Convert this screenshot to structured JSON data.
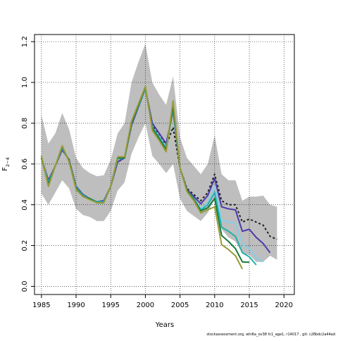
{
  "chart_data": {
    "type": "line",
    "title": "",
    "xlabel": "Years",
    "ylabel": "F",
    "ylabel_sub": "2−4",
    "xlim": [
      1984,
      2021.5
    ],
    "ylim": [
      -0.04,
      1.235
    ],
    "xticks": [
      1985,
      1990,
      1995,
      2000,
      2005,
      2010,
      2015,
      2020
    ],
    "yticks": [
      0.0,
      0.2,
      0.4,
      0.6,
      0.8,
      1.0,
      1.2
    ],
    "ytick_labels": [
      "0.0",
      "0.2",
      "0.4",
      "0.6",
      "0.8",
      "1.0",
      "1.2"
    ],
    "grid": "dotted",
    "band": {
      "color": "#bebebe",
      "x": [
        1985,
        1986,
        1987,
        1988,
        1989,
        1990,
        1991,
        1992,
        1993,
        1994,
        1995,
        1996,
        1997,
        1998,
        1999,
        2000,
        2001,
        2002,
        2003,
        2004,
        2005,
        2006,
        2007,
        2008,
        2009,
        2010,
        2011,
        2012,
        2013,
        2014,
        2015,
        2016,
        2017,
        2018,
        2019
      ],
      "upper": [
        0.84,
        0.7,
        0.75,
        0.85,
        0.77,
        0.63,
        0.58,
        0.555,
        0.54,
        0.545,
        0.62,
        0.75,
        0.8,
        1.0,
        1.1,
        1.19,
        1.0,
        0.94,
        0.89,
        1.03,
        0.73,
        0.63,
        0.59,
        0.55,
        0.6,
        0.74,
        0.55,
        0.52,
        0.52,
        0.42,
        0.44,
        0.44,
        0.445,
        0.4,
        0.39
      ],
      "lower": [
        0.455,
        0.4,
        0.46,
        0.52,
        0.48,
        0.38,
        0.35,
        0.34,
        0.32,
        0.32,
        0.37,
        0.47,
        0.51,
        0.65,
        0.73,
        0.8,
        0.64,
        0.6,
        0.555,
        0.6,
        0.43,
        0.37,
        0.345,
        0.32,
        0.36,
        0.43,
        0.28,
        0.24,
        0.22,
        0.16,
        0.155,
        0.12,
        0.12,
        0.15,
        0.13
      ]
    },
    "series": [
      {
        "color": "#222222",
        "dash": "3,3",
        "x": [
          1985,
          1986,
          1987,
          1988,
          1989,
          1990,
          1991,
          1992,
          1993,
          1994,
          1995,
          1996,
          1997,
          1998,
          1999,
          2000,
          2001,
          2002,
          2003,
          2004,
          2005,
          2006,
          2007,
          2008,
          2009,
          2010,
          2011,
          2012,
          2013,
          2014,
          2015,
          2016,
          2017,
          2018,
          2019
        ],
        "values": [
          0.63,
          0.52,
          0.59,
          0.67,
          0.62,
          0.49,
          0.45,
          0.43,
          0.415,
          0.42,
          0.49,
          0.61,
          0.63,
          0.79,
          0.88,
          0.97,
          0.79,
          0.74,
          0.69,
          0.78,
          0.58,
          0.48,
          0.45,
          0.42,
          0.46,
          0.55,
          0.42,
          0.4,
          0.4,
          0.315,
          0.33,
          0.315,
          0.3,
          0.245,
          0.23
        ]
      },
      {
        "color": "#4b3aa8",
        "dash": "",
        "x": [
          1985,
          1986,
          1987,
          1988,
          1989,
          1990,
          1991,
          1992,
          1993,
          1994,
          1995,
          1996,
          1997,
          1998,
          1999,
          2000,
          2001,
          2002,
          2003,
          2004,
          2005,
          2006,
          2007,
          2008,
          2009,
          2010,
          2011,
          2012,
          2013,
          2014,
          2015,
          2016,
          2017,
          2018
        ],
        "values": [
          0.63,
          0.52,
          0.59,
          0.67,
          0.62,
          0.49,
          0.45,
          0.43,
          0.415,
          0.42,
          0.49,
          0.61,
          0.63,
          0.79,
          0.88,
          0.97,
          0.8,
          0.75,
          0.7,
          0.86,
          0.58,
          0.475,
          0.44,
          0.405,
          0.445,
          0.53,
          0.39,
          0.38,
          0.375,
          0.27,
          0.28,
          0.24,
          0.21,
          0.165
        ]
      },
      {
        "color": "#87ceeb",
        "dash": "",
        "x": [
          1985,
          1986,
          1987,
          1988,
          1989,
          1990,
          1991,
          1992,
          1993,
          1994,
          1995,
          1996,
          1997,
          1998,
          1999,
          2000,
          2001,
          2002,
          2003,
          2004,
          2005,
          2006,
          2007,
          2008,
          2009,
          2010,
          2011,
          2012,
          2013,
          2014,
          2015,
          2016,
          2017
        ],
        "values": [
          0.63,
          0.51,
          0.59,
          0.68,
          0.615,
          0.485,
          0.445,
          0.43,
          0.415,
          0.415,
          0.49,
          0.625,
          0.63,
          0.8,
          0.885,
          0.97,
          0.78,
          0.735,
          0.68,
          0.87,
          0.58,
          0.47,
          0.43,
          0.38,
          0.41,
          0.49,
          0.325,
          0.315,
          0.31,
          0.205,
          0.185,
          0.14,
          0.12
        ]
      },
      {
        "color": "#20b2aa",
        "dash": "",
        "x": [
          1985,
          1986,
          1987,
          1988,
          1989,
          1990,
          1991,
          1992,
          1993,
          1994,
          1995,
          1996,
          1997,
          1998,
          1999,
          2000,
          2001,
          2002,
          2003,
          2004,
          2005,
          2006,
          2007,
          2008,
          2009,
          2010,
          2011,
          2012,
          2013,
          2014,
          2015,
          2016
        ],
        "values": [
          0.63,
          0.51,
          0.59,
          0.68,
          0.615,
          0.485,
          0.445,
          0.43,
          0.415,
          0.415,
          0.49,
          0.625,
          0.63,
          0.8,
          0.885,
          0.97,
          0.78,
          0.73,
          0.675,
          0.875,
          0.58,
          0.47,
          0.43,
          0.375,
          0.4,
          0.46,
          0.29,
          0.27,
          0.245,
          0.165,
          0.145,
          0.105
        ]
      },
      {
        "color": "#1a7a3c",
        "dash": "",
        "x": [
          1985,
          1986,
          1987,
          1988,
          1989,
          1990,
          1991,
          1992,
          1993,
          1994,
          1995,
          1996,
          1997,
          1998,
          1999,
          2000,
          2001,
          2002,
          2003,
          2004,
          2005,
          2006,
          2007,
          2008,
          2009,
          2010,
          2011,
          2012,
          2013,
          2014,
          2015
        ],
        "values": [
          0.63,
          0.5,
          0.59,
          0.685,
          0.615,
          0.48,
          0.44,
          0.43,
          0.41,
          0.41,
          0.49,
          0.63,
          0.63,
          0.8,
          0.89,
          0.975,
          0.775,
          0.725,
          0.67,
          0.88,
          0.58,
          0.47,
          0.425,
          0.37,
          0.385,
          0.43,
          0.25,
          0.22,
          0.185,
          0.12,
          0.118
        ]
      },
      {
        "color": "#9a9a38",
        "dash": "",
        "x": [
          1985,
          1986,
          1987,
          1988,
          1989,
          1990,
          1991,
          1992,
          1993,
          1994,
          1995,
          1996,
          1997,
          1998,
          1999,
          2000,
          2001,
          2002,
          2003,
          2004,
          2005,
          2006,
          2007,
          2008,
          2009,
          2010,
          2011,
          2012,
          2013,
          2014
        ],
        "values": [
          0.64,
          0.49,
          0.59,
          0.69,
          0.61,
          0.475,
          0.44,
          0.425,
          0.41,
          0.41,
          0.49,
          0.635,
          0.635,
          0.81,
          0.895,
          0.98,
          0.765,
          0.715,
          0.66,
          0.91,
          0.58,
          0.465,
          0.42,
          0.36,
          0.375,
          0.39,
          0.205,
          0.18,
          0.15,
          0.085
        ]
      }
    ]
  },
  "footer": "stockassessment.org, whi6a_ov38 fc1_age1, r14017 , git: c28bdc2a44ad"
}
